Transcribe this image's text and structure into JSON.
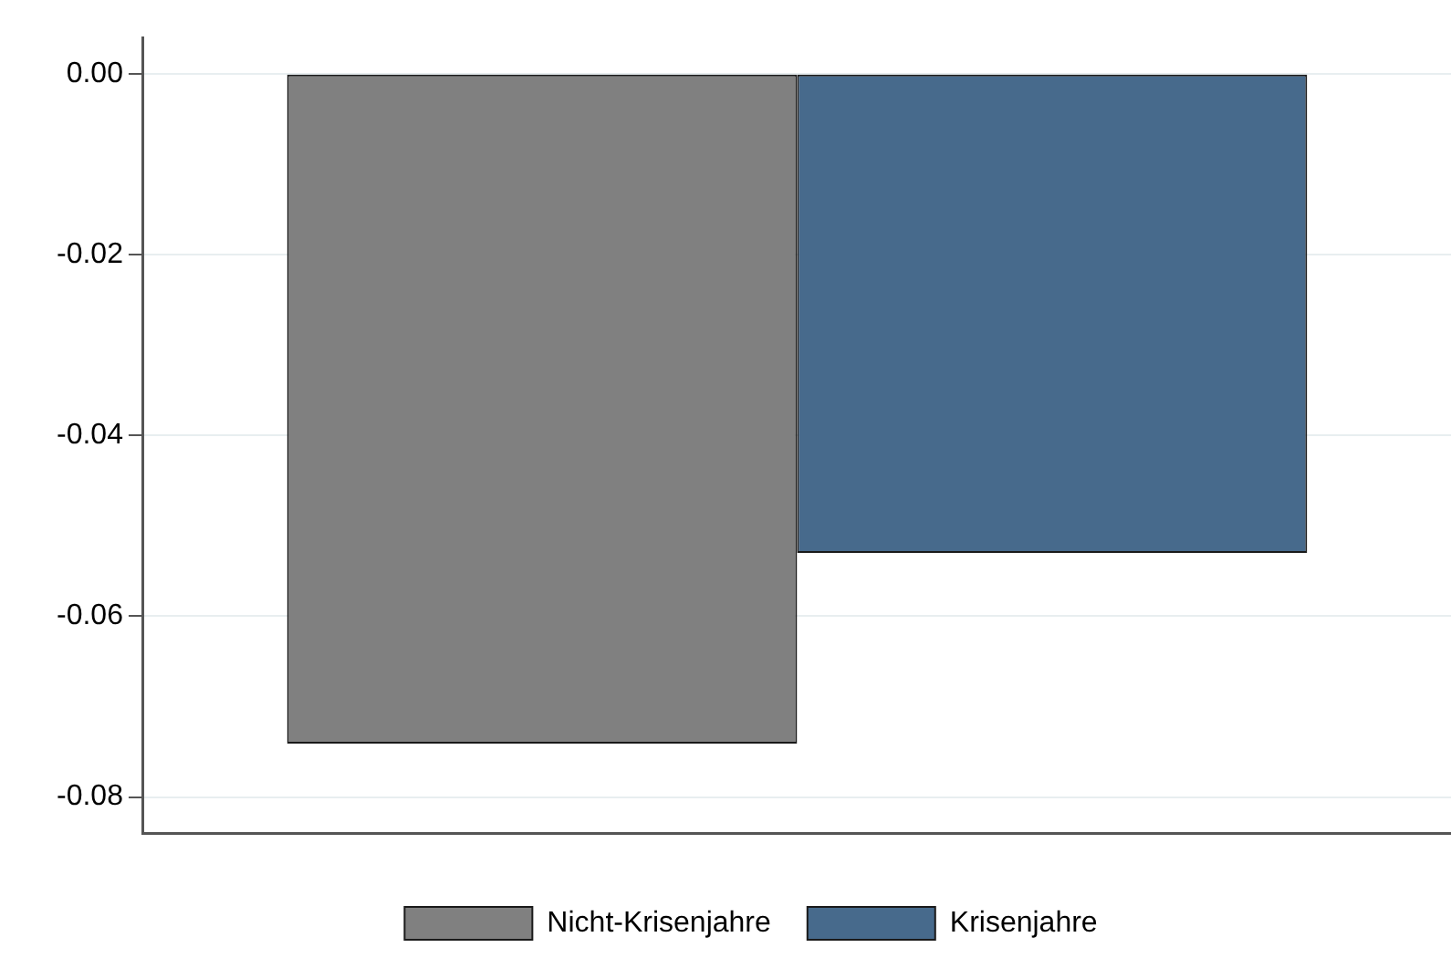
{
  "chart_data": {
    "type": "bar",
    "categories": [
      null
    ],
    "series": [
      {
        "name": "Nicht-Krisenjahre",
        "color": "#808080",
        "values": [
          -0.0741
        ]
      },
      {
        "name": "Krisenjahre",
        "color": "#476a8c",
        "values": [
          -0.053
        ]
      }
    ],
    "ylim": [
      -0.084,
      0.004
    ],
    "yticks": [
      {
        "value": 0,
        "label": "0.00"
      },
      {
        "value": -0.02,
        "label": "-0.02"
      },
      {
        "value": -0.04,
        "label": "-0.04"
      },
      {
        "value": -0.06,
        "label": "-0.06"
      },
      {
        "value": -0.08,
        "label": "-0.08"
      }
    ],
    "grid": "y",
    "legend": "bottom"
  }
}
